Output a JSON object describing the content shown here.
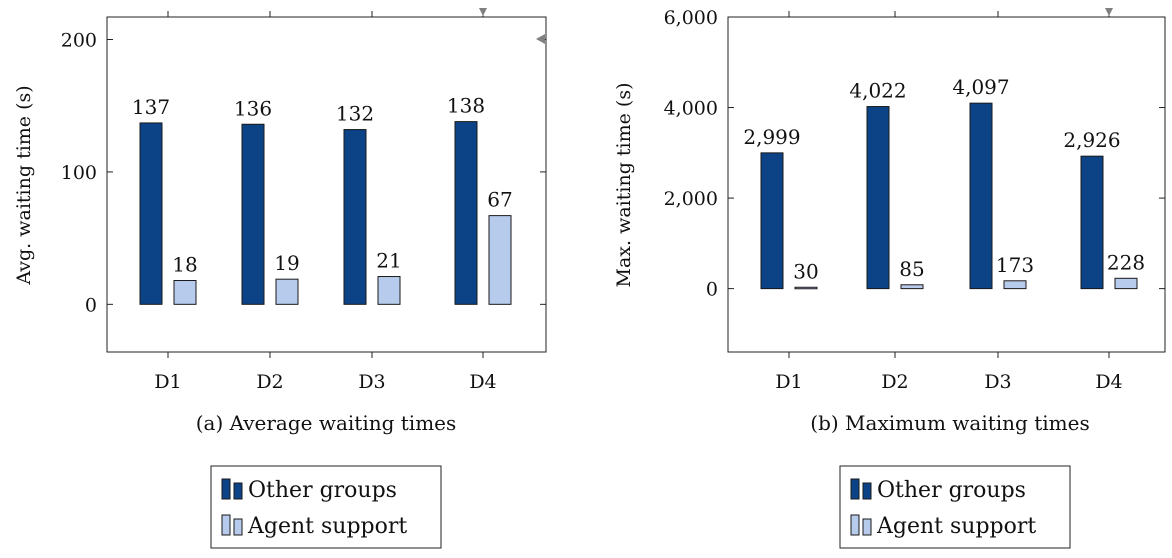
{
  "colors": {
    "other_groups": "#0b4386",
    "agent_support": "#b7cbec",
    "bar_stroke": "#1a1a1a",
    "marker": "#808080"
  },
  "chart_data": [
    {
      "type": "bar",
      "caption": "(a) Average waiting times",
      "ylabel": "Avg. waiting time (s)",
      "categories": [
        "D1",
        "D2",
        "D3",
        "D4"
      ],
      "ylim": [
        -36,
        217
      ],
      "yticks": [
        0,
        100,
        200
      ],
      "ytick_labels": [
        "0",
        "100",
        "200"
      ],
      "series": [
        {
          "name": "Other groups",
          "values": [
            137,
            136,
            132,
            138
          ],
          "value_labels": [
            "137",
            "136",
            "132",
            "138"
          ]
        },
        {
          "name": "Agent support",
          "values": [
            18,
            19,
            21,
            67
          ],
          "value_labels": [
            "18",
            "19",
            "21",
            "67"
          ]
        }
      ],
      "legend": {
        "placement": "below",
        "entries": [
          "Other groups",
          "Agent support"
        ]
      }
    },
    {
      "type": "bar",
      "caption": "(b) Maximum waiting times",
      "ylabel": "Max. waiting time (s)",
      "categories": [
        "D1",
        "D2",
        "D3",
        "D4"
      ],
      "ylim": [
        -1400,
        6000
      ],
      "yticks": [
        0,
        2000,
        4000,
        6000
      ],
      "ytick_labels": [
        "0",
        "2,000",
        "4,000",
        "6,000"
      ],
      "series": [
        {
          "name": "Other groups",
          "values": [
            2999,
            4022,
            4097,
            2926
          ],
          "value_labels": [
            "2,999",
            "4,022",
            "4,097",
            "2,926"
          ]
        },
        {
          "name": "Agent support",
          "values": [
            30,
            85,
            173,
            228
          ],
          "value_labels": [
            "30",
            "85",
            "173",
            "228"
          ]
        }
      ],
      "legend": {
        "placement": "below",
        "entries": [
          "Other groups",
          "Agent support"
        ]
      }
    }
  ]
}
